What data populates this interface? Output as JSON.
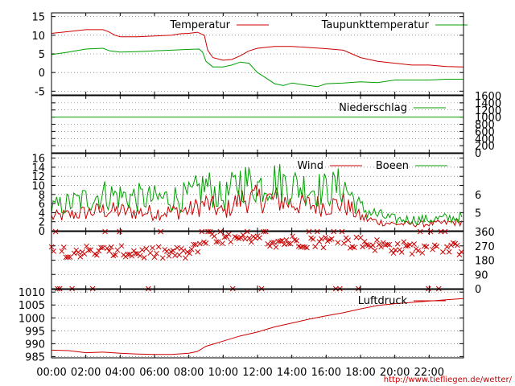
{
  "footer": {
    "url": "http://www.tiefliegen.de/wetter/"
  },
  "colors": {
    "red": "#cc0000",
    "green": "#00a000",
    "marker": "#cc0000"
  },
  "x_ticks": [
    "00:00",
    "02:00",
    "04:00",
    "06:00",
    "08:00",
    "10:00",
    "12:00",
    "14:00",
    "16:00",
    "18:00",
    "20:00",
    "22:00"
  ],
  "chart_data": [
    {
      "type": "line",
      "panel": "temperature",
      "y_ticks": [
        -5,
        0,
        5,
        10,
        15
      ],
      "ylim": [
        -6,
        16
      ],
      "xlim": [
        0,
        24
      ],
      "series": [
        {
          "name": "Temperatur",
          "color": "#cc0000",
          "points": [
            [
              0,
              10.5
            ],
            [
              1,
              11
            ],
            [
              2,
              11.5
            ],
            [
              3,
              11.5
            ],
            [
              3.3,
              11
            ],
            [
              3.7,
              10
            ],
            [
              4,
              9.6
            ],
            [
              5,
              9.6
            ],
            [
              6,
              9.8
            ],
            [
              7,
              10
            ],
            [
              7.5,
              10.4
            ],
            [
              8,
              10.5
            ],
            [
              8.5,
              10.8
            ],
            [
              8.9,
              10
            ],
            [
              9.1,
              6
            ],
            [
              9.4,
              4
            ],
            [
              10,
              3.3
            ],
            [
              10.5,
              3.5
            ],
            [
              11,
              4.5
            ],
            [
              11.5,
              5.8
            ],
            [
              12,
              6.5
            ],
            [
              13,
              7
            ],
            [
              14,
              7
            ],
            [
              15,
              6.7
            ],
            [
              16,
              6.4
            ],
            [
              17,
              6
            ],
            [
              17.5,
              5
            ],
            [
              18,
              4
            ],
            [
              19,
              3
            ],
            [
              20,
              2.5
            ],
            [
              21,
              2
            ],
            [
              22,
              2
            ],
            [
              23,
              1.6
            ],
            [
              24,
              1.5
            ]
          ]
        },
        {
          "name": "Taupunkttemperatur",
          "color": "#00a000",
          "points": [
            [
              0,
              4.8
            ],
            [
              1,
              5.5
            ],
            [
              2,
              6.3
            ],
            [
              3,
              6.5
            ],
            [
              3.4,
              5.8
            ],
            [
              4,
              5.5
            ],
            [
              5,
              5.6
            ],
            [
              6,
              5.8
            ],
            [
              7,
              6
            ],
            [
              8,
              6.2
            ],
            [
              8.6,
              6.3
            ],
            [
              8.8,
              5.5
            ],
            [
              9,
              3
            ],
            [
              9.4,
              1.5
            ],
            [
              10,
              1.5
            ],
            [
              10.5,
              2
            ],
            [
              11,
              2.8
            ],
            [
              11.5,
              2.5
            ],
            [
              12,
              0
            ],
            [
              12.5,
              -1.5
            ],
            [
              13,
              -3
            ],
            [
              13.5,
              -3.5
            ],
            [
              14,
              -2.8
            ],
            [
              15,
              -3.5
            ],
            [
              15.5,
              -3.8
            ],
            [
              16,
              -3
            ],
            [
              17,
              -2.8
            ],
            [
              18,
              -2.5
            ],
            [
              19,
              -2.7
            ],
            [
              20,
              -2
            ],
            [
              21,
              -2
            ],
            [
              22,
              -2
            ],
            [
              23,
              -1.8
            ],
            [
              24,
              -1.8
            ]
          ]
        }
      ]
    },
    {
      "type": "line",
      "panel": "precipitation",
      "y_ticks": [
        0,
        200,
        400,
        600,
        800,
        1000,
        1200,
        1400,
        1600
      ],
      "ylim": [
        0,
        1600
      ],
      "xlim": [
        0,
        24
      ],
      "series": [
        {
          "name": "Niederschlag",
          "color": "#00a000",
          "points": [
            [
              0,
              1000
            ],
            [
              24,
              1000
            ]
          ]
        }
      ]
    },
    {
      "type": "line",
      "panel": "wind",
      "y_ticks": [
        0,
        2,
        4,
        6,
        8,
        10,
        12,
        14,
        16
      ],
      "ylim": [
        0,
        17
      ],
      "y2_ticks": [
        5,
        6
      ],
      "xlim": [
        0,
        24
      ],
      "series": [
        {
          "name": "Wind",
          "color": "#cc0000",
          "anchors": [
            [
              0,
              3
            ],
            [
              3,
              4.5
            ],
            [
              6,
              4
            ],
            [
              8,
              4.5
            ],
            [
              9,
              6
            ],
            [
              10,
              4
            ],
            [
              11,
              7
            ],
            [
              12,
              7
            ],
            [
              13,
              7
            ],
            [
              14,
              6
            ],
            [
              16,
              5.5
            ],
            [
              17,
              6
            ],
            [
              18,
              3
            ],
            [
              19,
              2
            ],
            [
              20,
              1.5
            ],
            [
              22,
              1.5
            ],
            [
              24,
              2
            ]
          ]
        },
        {
          "name": "Boeen",
          "color": "#00a000",
          "anchors": [
            [
              0,
              5
            ],
            [
              3,
              8
            ],
            [
              6,
              7
            ],
            [
              8,
              7.5
            ],
            [
              9,
              10
            ],
            [
              10,
              7
            ],
            [
              11,
              11
            ],
            [
              12,
              10
            ],
            [
              13,
              11
            ],
            [
              14,
              10
            ],
            [
              16,
              9
            ],
            [
              17,
              10
            ],
            [
              18,
              5
            ],
            [
              19,
              3.5
            ],
            [
              20,
              2.5
            ],
            [
              22,
              2.5
            ],
            [
              24,
              3
            ]
          ]
        }
      ]
    },
    {
      "type": "scatter",
      "panel": "wind_direction",
      "y_ticks": [
        0,
        90,
        180,
        270,
        360
      ],
      "ylim": [
        0,
        360
      ],
      "xlim": [
        0,
        24
      ],
      "series": [
        {
          "color": "#cc0000",
          "anchors": [
            [
              0,
              240
            ],
            [
              4,
              230
            ],
            [
              8,
              220
            ],
            [
              9,
              310
            ],
            [
              12,
              300
            ],
            [
              14,
              300
            ],
            [
              18,
              290
            ],
            [
              20,
              260
            ],
            [
              24,
              250
            ]
          ]
        }
      ]
    },
    {
      "type": "line",
      "panel": "pressure",
      "y_ticks": [
        985,
        990,
        995,
        1000,
        1005,
        1010
      ],
      "ylim": [
        984.5,
        1011
      ],
      "xlim": [
        0,
        24
      ],
      "series": [
        {
          "name": "Luftdruck",
          "color": "#cc0000",
          "points": [
            [
              0,
              987.5
            ],
            [
              1,
              987.3
            ],
            [
              2,
              986.5
            ],
            [
              3,
              986.7
            ],
            [
              4,
              986.3
            ],
            [
              5,
              986
            ],
            [
              6,
              985.8
            ],
            [
              7,
              985.8
            ],
            [
              8,
              986.3
            ],
            [
              8.5,
              987
            ],
            [
              9,
              989
            ],
            [
              10,
              991
            ],
            [
              11,
              993
            ],
            [
              12,
              994.5
            ],
            [
              13,
              996.5
            ],
            [
              14,
              998
            ],
            [
              15,
              999.5
            ],
            [
              16,
              1000.8
            ],
            [
              17,
              1002
            ],
            [
              18,
              1003.5
            ],
            [
              19,
              1004.8
            ],
            [
              20,
              1005.5
            ],
            [
              21,
              1006
            ],
            [
              22,
              1006.5
            ],
            [
              23,
              1007
            ],
            [
              24,
              1007.5
            ]
          ]
        }
      ]
    }
  ]
}
